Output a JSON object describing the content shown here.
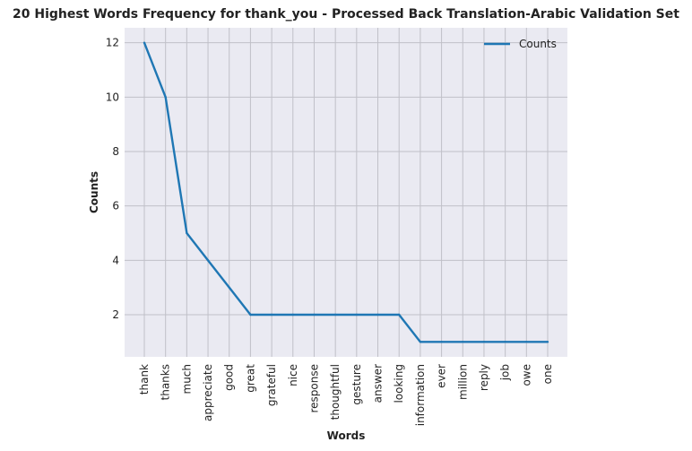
{
  "chart_data": {
    "type": "line",
    "title": "20 Highest Words Frequency for thank_you - Processed Back Translation-Arabic Validation Set",
    "xlabel": "Words",
    "ylabel": "Counts",
    "categories": [
      "thank",
      "thanks",
      "much",
      "appreciate",
      "good",
      "great",
      "grateful",
      "nice",
      "response",
      "thoughtful",
      "gesture",
      "answer",
      "looking",
      "information",
      "ever",
      "million",
      "reply",
      "job",
      "owe",
      "one"
    ],
    "series": [
      {
        "name": "Counts",
        "values": [
          12,
          10,
          5,
          4,
          3,
          2,
          2,
          2,
          2,
          2,
          2,
          2,
          2,
          1,
          1,
          1,
          1,
          1,
          1,
          1
        ]
      }
    ],
    "yticks": [
      2,
      4,
      6,
      8,
      10,
      12
    ],
    "ylim": [
      0.45,
      12.55
    ],
    "grid": true,
    "legend_position": "top-right",
    "colors": {
      "line": "#1f77b4",
      "plot_background": "#eaeaf2",
      "grid": "#c0c0c8"
    }
  }
}
